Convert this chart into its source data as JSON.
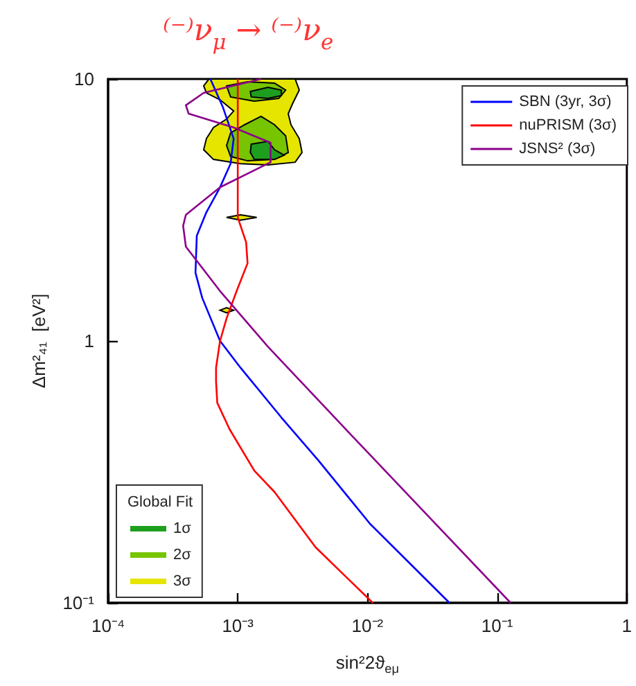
{
  "chart_data": {
    "type": "line",
    "title": "⁽⁻⁾ν$_{μ}$ → ⁽⁻⁾ν$_{e}$",
    "xlabel": "sin²2ϑ$_{eμ}$",
    "ylabel": "Δm²₄₁  [eV²]",
    "legend_title": "Global Fit",
    "log": "xy",
    "grid": false,
    "legend": "top right",
    "xlim": [
      0.0001,
      1
    ],
    "ylim": [
      0.1,
      10
    ],
    "xticks": [
      {
        "value": 0.0001,
        "label": "10⁻⁴"
      },
      {
        "value": 0.001,
        "label": "10⁻³"
      },
      {
        "value": 0.01,
        "label": "10⁻²"
      },
      {
        "value": 0.1,
        "label": "10⁻¹"
      },
      1
    ],
    "yticks": [
      {
        "value": 0.1,
        "label": "10⁻¹"
      },
      1,
      10
    ],
    "series": [
      {
        "name": "3σ",
        "type": "area",
        "color": "#e5e500",
        "x": [
          0.0006,
          0.00277,
          0.00298,
          0.00264,
          0.00245,
          0.00257,
          0.00298,
          0.00313,
          0.00277,
          0.00171,
          0.00105,
          0.00065,
          0.000546,
          0.000573,
          0.00065,
          0.00082,
          0.00093,
          0.00073,
          0.000573,
          0.000546,
          null,
          0.00082,
          0.00105,
          0.0014,
          0.00105,
          null,
          0.00073,
          0.00082,
          0.00093,
          0.00082
        ],
        "values": [
          10,
          10,
          9.07,
          8.03,
          7.37,
          6.69,
          5.92,
          5.24,
          4.81,
          4.7,
          4.75,
          4.93,
          5.37,
          5.92,
          6.53,
          7.03,
          7.55,
          8.33,
          8.85,
          9.41,
          null,
          2.96,
          3.03,
          2.96,
          2.89,
          null,
          1.31,
          1.34,
          1.31,
          1.28
        ]
      },
      {
        "name": "2σ",
        "type": "area",
        "color": "#77c400",
        "x": [
          0.00082,
          0.00119,
          0.00192,
          0.00234,
          0.00207,
          0.00134,
          0.00088,
          null,
          0.00151,
          0.00192,
          0.00234,
          0.00245,
          0.00192,
          0.00119,
          0.00088,
          0.00082,
          0.00088,
          0.00113
        ],
        "values": [
          9.41,
          9.76,
          9.64,
          9.07,
          8.43,
          8.23,
          8.54,
          null,
          7.2,
          6.69,
          6.07,
          5.24,
          4.93,
          4.87,
          5.06,
          5.57,
          6.22,
          6.69
        ]
      },
      {
        "name": "1σ",
        "type": "area",
        "color": "#1e9e1e",
        "x": [
          0.00125,
          0.00171,
          0.00217,
          0.00217,
          0.00171,
          0.00127,
          null,
          0.00127,
          0.00171,
          0.00192,
          0.00228,
          0.00192,
          0.00134,
          0.00125
        ],
        "values": [
          8.96,
          9.3,
          9.07,
          8.64,
          8.43,
          8.54,
          null,
          5.64,
          5.78,
          5.37,
          5.12,
          4.93,
          4.93,
          5.24
        ]
      },
      {
        "name": "SBN (3yr, 3σ)",
        "color": "#0000ff",
        "x": [
          0.000615,
          0.000766,
          0.00093,
          0.00088,
          0.00073,
          0.000573,
          0.000483,
          0.000472,
          0.000532,
          0.00073,
          0.00105,
          0.00217,
          0.00418,
          0.0105,
          0.0429
        ],
        "values": [
          10,
          7.83,
          5.92,
          4.75,
          3.86,
          3.1,
          2.52,
          1.82,
          1.46,
          1.0,
          0.79,
          0.51,
          0.35,
          0.2,
          0.1
        ]
      },
      {
        "name": "nuPRISM (3σ)",
        "color": "#ff0000",
        "x": [
          0.001,
          0.001,
          0.00116,
          0.00119,
          0.00098,
          0.00082,
          0.00073,
          0.00068,
          0.00068,
          0.000695,
          0.000865,
          0.00134,
          0.00192,
          0.00398,
          0.011
        ],
        "values": [
          10,
          2.96,
          2.38,
          1.98,
          1.55,
          1.22,
          1.0,
          0.79,
          0.7,
          0.58,
          0.46,
          0.32,
          0.265,
          0.163,
          0.1
        ]
      },
      {
        "name": "JSNS² (3σ)",
        "color": "#8b008b",
        "x": [
          0.00151,
          0.000546,
          0.000398,
          0.000418,
          0.00093,
          0.00179,
          0.00179,
          0.00073,
          0.000398,
          0.000379,
          0.000398,
          0.00073,
          0.00171,
          0.0068,
          0.127
        ],
        "values": [
          10,
          8.85,
          7.94,
          7.37,
          6.53,
          5.71,
          4.81,
          3.86,
          3.03,
          2.75,
          2.29,
          1.55,
          0.95,
          0.46,
          0.1
        ]
      }
    ]
  }
}
